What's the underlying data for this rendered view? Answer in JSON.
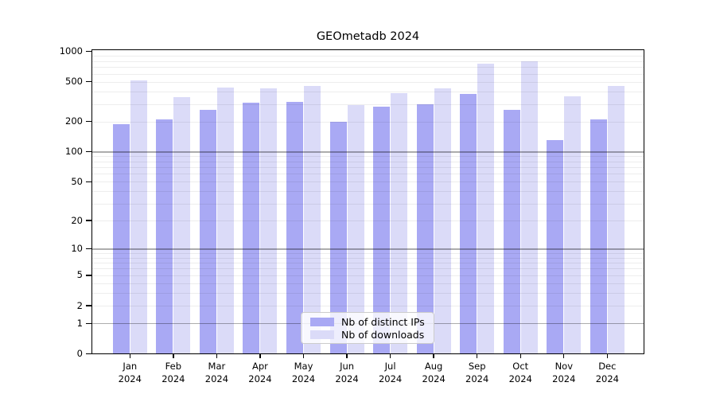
{
  "title": "GEOmetadb 2024",
  "chart_data": {
    "type": "bar",
    "title": "GEOmetadb 2024",
    "categories": [
      "Jan 2024",
      "Feb 2024",
      "Mar 2024",
      "Apr 2024",
      "May 2024",
      "Jun 2024",
      "Jul 2024",
      "Aug 2024",
      "Sep 2024",
      "Oct 2024",
      "Nov 2024",
      "Dec 2024"
    ],
    "months": [
      "Jan",
      "Feb",
      "Mar",
      "Apr",
      "May",
      "Jun",
      "Jul",
      "Aug",
      "Sep",
      "Oct",
      "Nov",
      "Dec"
    ],
    "year_label": "2024",
    "series": [
      {
        "name": "Nb of distinct IPs",
        "color": "#a9a9f4",
        "values": [
          190,
          210,
          260,
          310,
          315,
          200,
          280,
          300,
          380,
          260,
          130,
          210
        ]
      },
      {
        "name": "Nb of downloads",
        "color": "#dbdbf8",
        "values": [
          510,
          350,
          440,
          425,
          450,
          290,
          385,
          430,
          760,
          790,
          355,
          450
        ]
      }
    ],
    "xlabel": "",
    "ylabel": "",
    "yscale": "log10(1+y)",
    "ylim": [
      0,
      1050
    ],
    "yticks": [
      1000,
      500,
      200,
      100,
      50,
      20,
      10,
      5,
      2,
      1,
      0
    ],
    "grid": {
      "on": true,
      "minor_color": "rgba(0,0,0,0.07)",
      "major_color": "rgba(0,0,0,0.32)",
      "note": "darker lines at powers of ten (1, 10, 100); light minor lines at 2-9 x 10^k"
    },
    "legend": {
      "position": "lower center",
      "labels": [
        "Nb of distinct IPs",
        "Nb of downloads"
      ]
    }
  }
}
